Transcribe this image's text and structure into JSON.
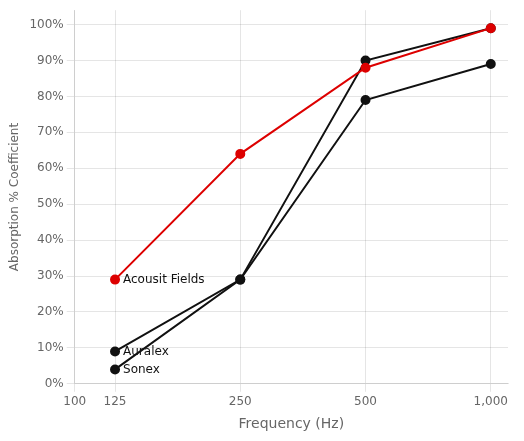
{
  "chart_data": {
    "type": "line",
    "xlabel": "Frequency (Hz)",
    "ylabel": "Absorption % Coefficient",
    "x": [
      125,
      250,
      500,
      1000
    ],
    "series": [
      {
        "name": "Acousit Fields",
        "color": "#dd0000",
        "values": [
          0.29,
          0.64,
          0.88,
          0.99
        ]
      },
      {
        "name": "Auralex",
        "color": "#111111",
        "values": [
          0.09,
          0.29,
          0.9,
          0.99
        ]
      },
      {
        "name": "Sonex",
        "color": "#111111",
        "values": [
          0.04,
          0.29,
          0.79,
          0.89
        ]
      }
    ],
    "annotations": [
      {
        "text": "Acousit Fields",
        "x": 125,
        "y": 0.29
      },
      {
        "text": "Auralex",
        "x": 125,
        "y": 0.09
      },
      {
        "text": "Sonex",
        "x": 125,
        "y": 0.04
      }
    ],
    "log": "x",
    "xlim": [
      100,
      1100
    ],
    "xticks": [
      100,
      125,
      250,
      500,
      {
        "value": 1000,
        "label": "1,000"
      }
    ],
    "ylim": [
      0.0,
      1.04
    ],
    "yticks": [
      {
        "value": 0.0,
        "label": "0%"
      },
      {
        "value": 0.1,
        "label": "10%"
      },
      {
        "value": 0.2,
        "label": "20%"
      },
      {
        "value": 0.3,
        "label": "30%"
      },
      {
        "value": 0.4,
        "label": "40%"
      },
      {
        "value": 0.5,
        "label": "50%"
      },
      {
        "value": 0.6,
        "label": "60%"
      },
      {
        "value": 0.7,
        "label": "70%"
      },
      {
        "value": 0.8,
        "label": "80%"
      },
      {
        "value": 0.9,
        "label": "90%"
      },
      {
        "value": 1.0,
        "label": "100%"
      }
    ],
    "grid": true,
    "marker": "circle"
  }
}
